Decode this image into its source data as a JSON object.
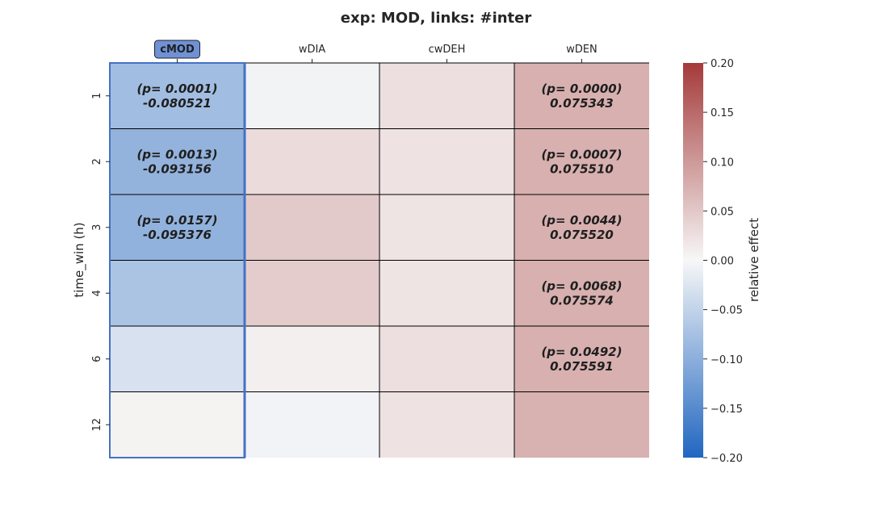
{
  "chart_data": {
    "type": "heatmap",
    "title": "exp: MOD, links: #inter",
    "columns": [
      "cMOD",
      "wDIA",
      "cwDEH",
      "wDEN"
    ],
    "rows": [
      "1",
      "2",
      "3",
      "4",
      "6",
      "12"
    ],
    "ylabel": "time_win (h)",
    "colorbar_label": "relative effect",
    "colorbar_range": [
      -0.2,
      0.2
    ],
    "colorbar_ticks": [
      "0.20",
      "0.15",
      "0.10",
      "0.05",
      "0.00",
      "−0.05",
      "−0.10",
      "−0.15",
      "−0.20"
    ],
    "colormap": {
      "low": "#2166c0",
      "mid": "#f7f7f7",
      "high": "#a53a3a"
    },
    "highlight_column": "cMOD",
    "highlight_color": "#4472c4",
    "values": [
      [
        -0.080521,
        -0.006,
        0.025,
        0.075343
      ],
      [
        -0.093156,
        0.03,
        0.022,
        0.07551
      ],
      [
        -0.095376,
        0.048,
        0.02,
        0.07552
      ],
      [
        -0.07,
        0.045,
        0.02,
        0.075574
      ],
      [
        -0.03,
        0.008,
        0.025,
        0.075591
      ],
      [
        0.005,
        -0.005,
        0.022,
        0.0745
      ]
    ],
    "annotations": [
      [
        "(p= 0.0001)\n-0.080521",
        "",
        "",
        "(p= 0.0000)\n0.075343"
      ],
      [
        "(p= 0.0013)\n-0.093156",
        "",
        "",
        "(p= 0.0007)\n0.075510"
      ],
      [
        "(p= 0.0157)\n-0.095376",
        "",
        "",
        "(p= 0.0044)\n0.075520"
      ],
      [
        "",
        "",
        "",
        "(p= 0.0068)\n0.075574"
      ],
      [
        "",
        "",
        "",
        "(p= 0.0492)\n0.075591"
      ],
      [
        "",
        "",
        "",
        ""
      ]
    ]
  }
}
